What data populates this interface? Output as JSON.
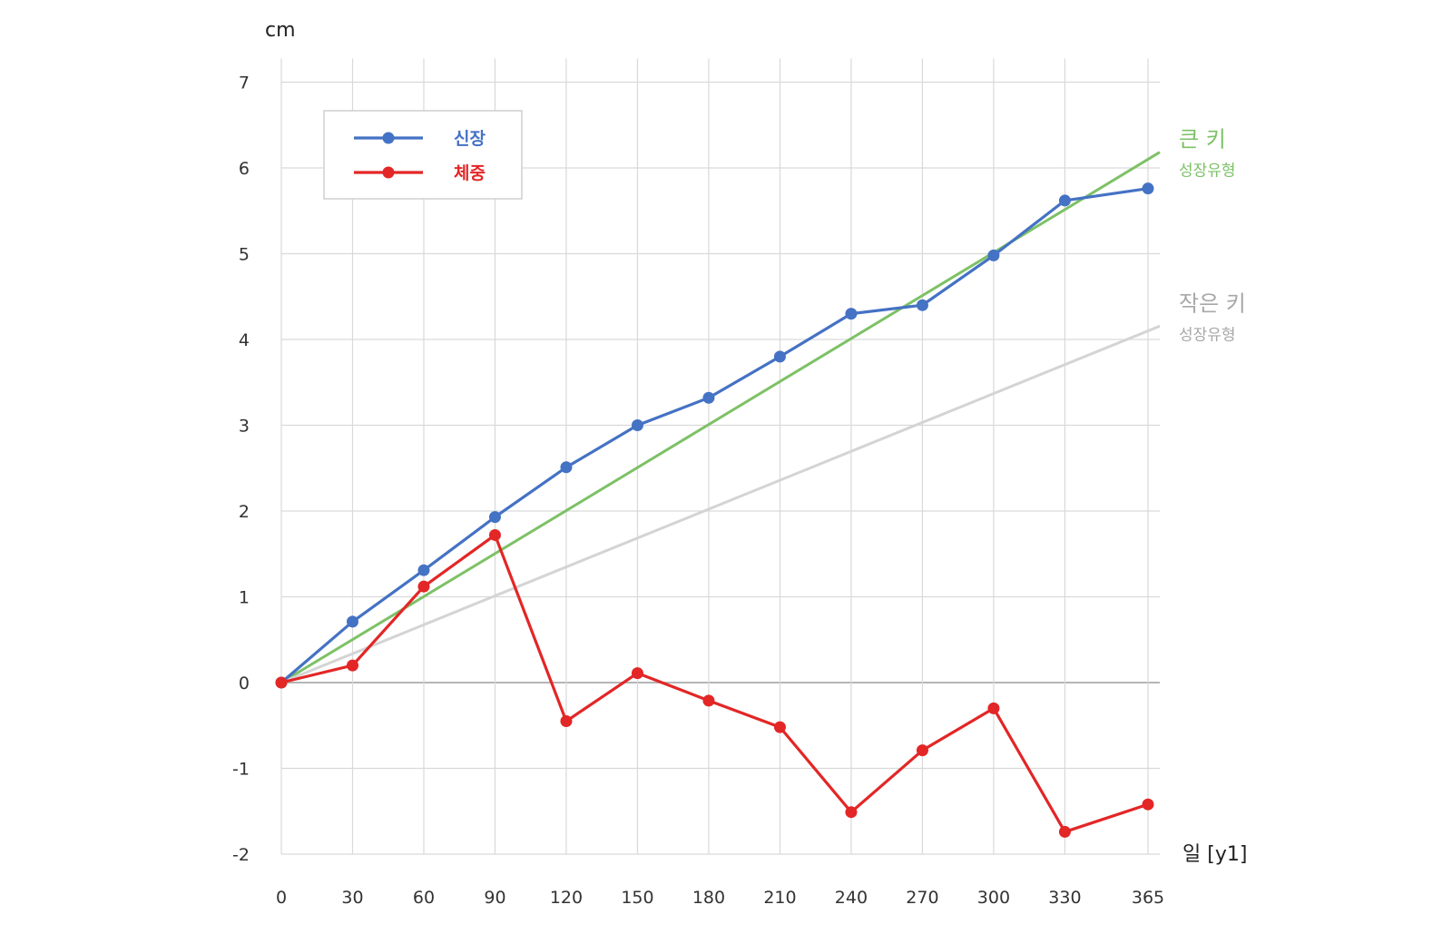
{
  "chart_data": {
    "type": "line",
    "y_unit_label": "cm",
    "x_unit_label": "일 [y1]",
    "x": [
      0,
      30,
      60,
      90,
      120,
      150,
      180,
      210,
      240,
      270,
      300,
      330,
      365
    ],
    "x_tick_labels": [
      "0",
      "30",
      "60",
      "90",
      "120",
      "150",
      "180",
      "210",
      "240",
      "270",
      "300",
      "330",
      "365"
    ],
    "y_ticks": [
      -2,
      -1,
      0,
      1,
      2,
      3,
      4,
      5,
      6,
      7
    ],
    "y_tick_labels": [
      "-2",
      "-1",
      "0",
      "1",
      "2",
      "3",
      "4",
      "5",
      "6",
      "7"
    ],
    "ylim": [
      -2,
      7
    ],
    "grid": true,
    "legend_position": "top-left",
    "series": [
      {
        "name": "신장",
        "color": "#4472c4",
        "values": [
          0,
          0.71,
          1.31,
          1.93,
          2.51,
          3.0,
          3.32,
          3.8,
          4.3,
          4.4,
          4.98,
          5.62,
          5.76
        ]
      },
      {
        "name": "체중",
        "color": "#e32626",
        "values": [
          0,
          0.2,
          1.12,
          1.72,
          -0.45,
          0.11,
          -0.21,
          -0.52,
          -1.51,
          -0.79,
          -0.3,
          -1.74,
          -1.42
        ]
      }
    ],
    "reference_lines": [
      {
        "title": "큰 키",
        "subtitle": "성장유형",
        "color": "#7dc166",
        "start": [
          0,
          0
        ],
        "end": [
          365,
          6.1
        ]
      },
      {
        "title": "작은 키",
        "subtitle": "성장유형",
        "color": "#d4d4d4",
        "label_color": "#a8a8a8",
        "start": [
          0,
          0
        ],
        "end": [
          365,
          4.1
        ]
      }
    ]
  }
}
